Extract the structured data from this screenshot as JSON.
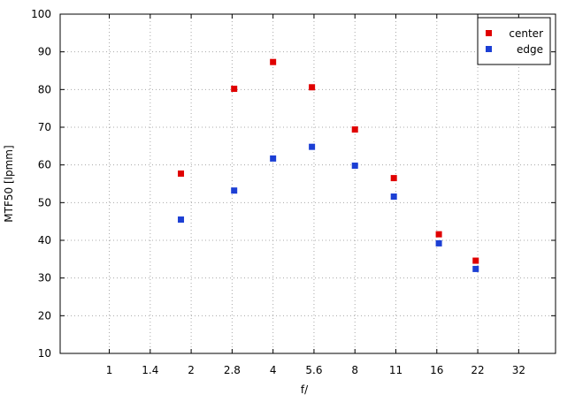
{
  "chart_data": {
    "type": "scatter",
    "title": "",
    "xlabel": "f/",
    "ylabel": "MTF50 [lpmm]",
    "x_tick_labels": [
      "1",
      "1.4",
      "2",
      "2.8",
      "4",
      "5.6",
      "8",
      "11",
      "16",
      "22",
      "32"
    ],
    "x_ticks_stops": [
      0,
      1,
      2,
      3,
      4,
      5,
      6,
      7,
      8,
      9,
      10
    ],
    "xlim_stops": [
      -1.2,
      10.9
    ],
    "y_ticks": [
      10,
      20,
      30,
      40,
      50,
      60,
      70,
      80,
      90,
      100
    ],
    "ylim": [
      10,
      100
    ],
    "grid": true,
    "legend_position": "top-right",
    "series": [
      {
        "name": "center",
        "color": "#e00000",
        "x_stops": [
          1.75,
          3.05,
          4.0,
          4.95,
          6.0,
          6.95,
          8.05,
          8.95
        ],
        "values": [
          57.7,
          80.2,
          87.3,
          80.6,
          69.4,
          56.5,
          41.6,
          34.6
        ]
      },
      {
        "name": "edge",
        "color": "#1c3fd4",
        "x_stops": [
          1.75,
          3.05,
          4.0,
          4.95,
          6.0,
          6.95,
          8.05,
          8.95
        ],
        "values": [
          45.5,
          53.2,
          61.7,
          64.8,
          59.8,
          51.6,
          39.2,
          32.4
        ]
      }
    ]
  }
}
